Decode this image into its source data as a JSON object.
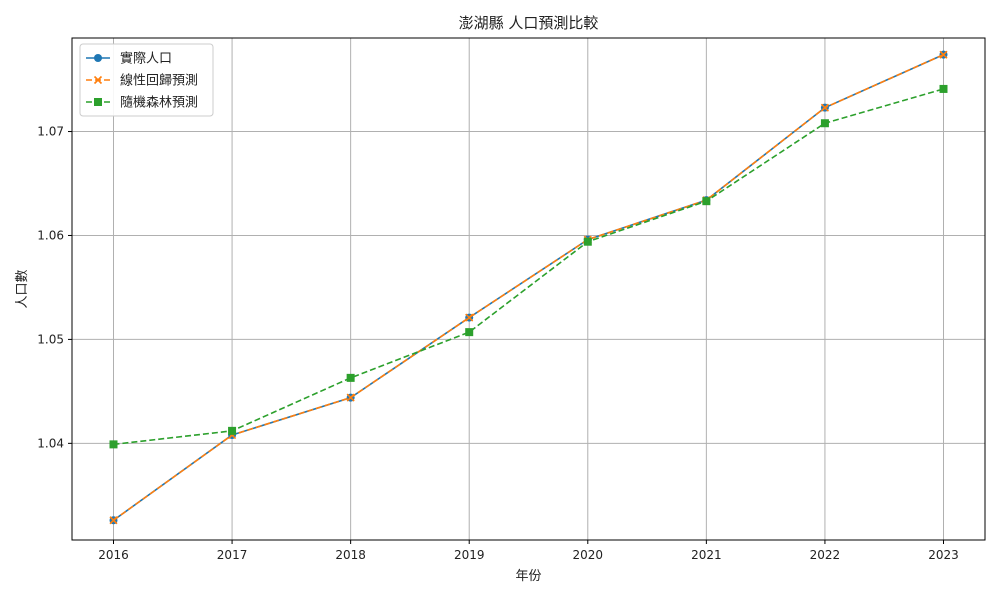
{
  "chart_data": {
    "type": "line",
    "title": "澎湖縣 人口預測比較",
    "xlabel": "年份",
    "ylabel": "人口數",
    "x": [
      2016,
      2017,
      2018,
      2019,
      2020,
      2021,
      2022,
      2023
    ],
    "xlim": [
      2015.65,
      2023.35
    ],
    "ylim": [
      1.0307,
      1.079
    ],
    "yticks": [
      1.04,
      1.05,
      1.06,
      1.07
    ],
    "ytick_labels": [
      "1.04",
      "1.05",
      "1.06",
      "1.07"
    ],
    "grid": true,
    "legend_position": "top-left",
    "series": [
      {
        "name": "實際人口",
        "color": "#1f77b4",
        "marker": "circle",
        "dash": "solid",
        "values": [
          1.0326,
          1.0408,
          1.0444,
          1.0521,
          1.0596,
          1.0634,
          1.0723,
          1.0774
        ]
      },
      {
        "name": "線性回歸預測",
        "color": "#ff7f0e",
        "marker": "x",
        "dash": "dashed",
        "values": [
          1.0326,
          1.0408,
          1.0444,
          1.0521,
          1.0596,
          1.0634,
          1.0723,
          1.0774
        ]
      },
      {
        "name": "隨機森林預測",
        "color": "#2ca02c",
        "marker": "square",
        "dash": "dashed",
        "values": [
          1.0399,
          1.0412,
          1.0463,
          1.0507,
          1.0594,
          1.0633,
          1.0708,
          1.0741
        ]
      }
    ]
  }
}
